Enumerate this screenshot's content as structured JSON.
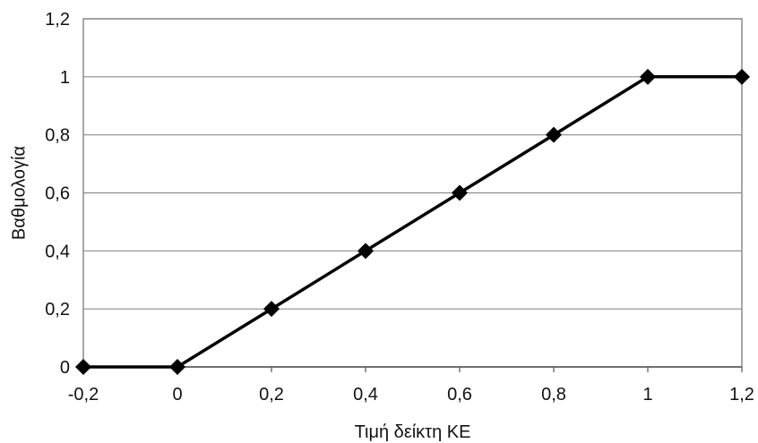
{
  "chart_data": {
    "type": "line",
    "title": "",
    "xlabel": "Τιμή δείκτη ΚΕ",
    "ylabel": "Βαθμολογία",
    "x": [
      -0.2,
      0,
      0.2,
      0.4,
      0.6,
      0.8,
      1,
      1.2
    ],
    "series": [
      {
        "values": [
          0,
          0,
          0.2,
          0.4,
          0.6,
          0.8,
          1,
          1
        ],
        "marker": "diamond",
        "color": "#000000"
      }
    ],
    "xlim": [
      -0.2,
      1.2
    ],
    "ylim": [
      0,
      1.2
    ],
    "xticks": [
      -0.2,
      0,
      0.2,
      0.4,
      0.6,
      0.8,
      1,
      1.2
    ],
    "xtick_labels": [
      "-0,2",
      "0",
      "0,2",
      "0,4",
      "0,6",
      "0,8",
      "1",
      "1,2"
    ],
    "yticks": [
      0,
      0.2,
      0.4,
      0.6,
      0.8,
      1,
      1.2
    ],
    "ytick_labels": [
      "0",
      "0,2",
      "0,4",
      "0,6",
      "0,8",
      "1",
      "1,2"
    ],
    "grid": "horizontal",
    "legend": "none",
    "colors": {
      "line": "#000000",
      "grid": "#8c8c8c",
      "plot_border": "#8c8c8c",
      "background": "#ffffff"
    }
  }
}
